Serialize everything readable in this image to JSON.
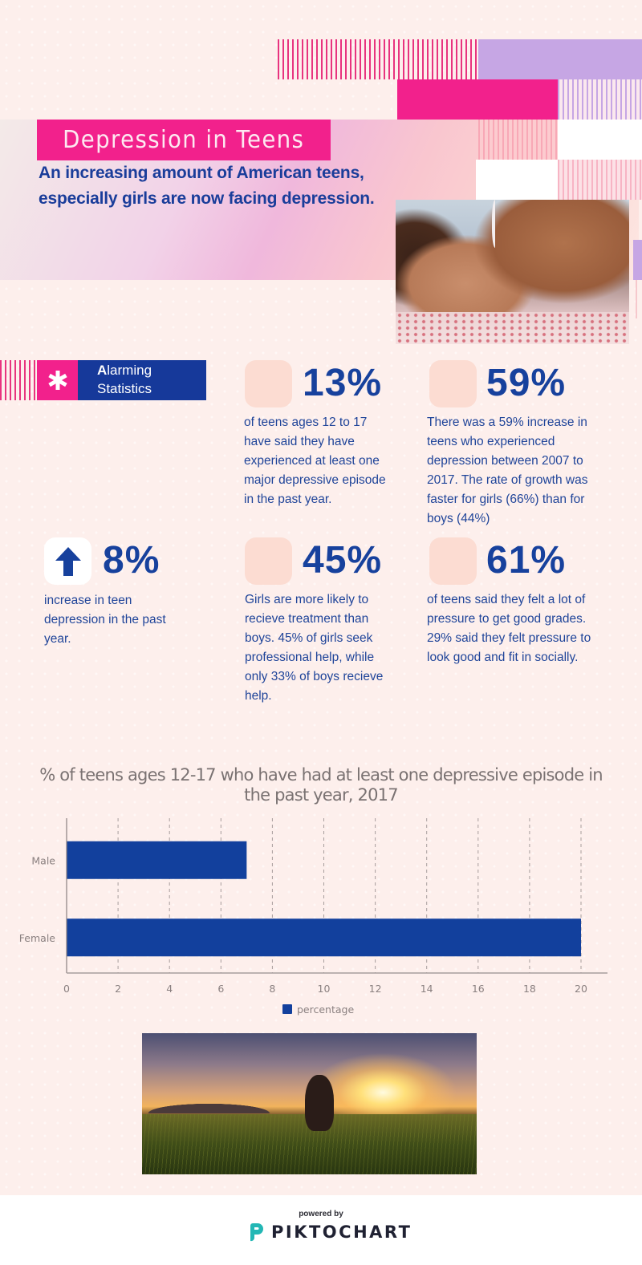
{
  "header": {
    "title": "Depression in Teens",
    "subtitle_line1": "An increasing amount of American teens,",
    "subtitle_line2": "especially girls are now facing depression."
  },
  "section_label": {
    "icon": "asterisk-icon",
    "first_letter": "A",
    "line1_rest": "larming",
    "line2": "Statistics"
  },
  "stats": [
    {
      "value": "13%",
      "text_lines": [
        "of teens ages 12 to 17",
        "have said they have",
        "experienced at least one",
        "major depressive episode",
        "in the past year."
      ]
    },
    {
      "value": "59%",
      "text_lines": [
        "There was a 59% increase in",
        "teens who experienced",
        "depression between 2007 to",
        "2017.  The rate of growth was",
        "faster for girls (66%) than for",
        "boys (44%)"
      ]
    },
    {
      "value": "8%",
      "icon": "arrow-up-icon",
      "text_lines": [
        "increase in teen",
        "depression in the past",
        "year."
      ]
    },
    {
      "value": "45%",
      "text_lines": [
        "Girls are more likely to",
        "recieve treatment than",
        "boys.  45% of girls seek",
        "professional help, while",
        "only 33% of boys recieve",
        "help."
      ]
    },
    {
      "value": "61%",
      "text_lines": [
        "of teens said they felt a lot of",
        "pressure to get good grades.",
        "29% said they felt pressure to",
        "look good and fit in socially."
      ]
    }
  ],
  "chart_data": {
    "type": "bar",
    "orientation": "horizontal",
    "title_line1": "% of teens ages 12-17 who have had at least one depressive episode in",
    "title_line2": "the past year, 2017",
    "categories": [
      "Male",
      "Female"
    ],
    "series": [
      {
        "name": "percentage",
        "values": [
          7,
          20
        ],
        "color": "#12409d"
      }
    ],
    "xlabel": "",
    "ylabel": "",
    "xlim": [
      0,
      20
    ],
    "xticks": [
      "0",
      "2",
      "4",
      "6",
      "8",
      "10",
      "12",
      "14",
      "16",
      "18",
      "20"
    ],
    "grid": "vertical-dashed",
    "legend": "bottom-center"
  },
  "images": {
    "hero": "girl lying on bed covering face",
    "bottom": "girl walking in field at sunset"
  },
  "footer": {
    "powered_by": "powered by",
    "brand": "PIKTOCHART",
    "brand_color": "#23b7b5"
  },
  "colors": {
    "pink": "#f2218c",
    "navy": "#16399a",
    "lilac": "#c6a6e4",
    "background": "#fdefec",
    "icon_tile": "#fcdcd2"
  }
}
